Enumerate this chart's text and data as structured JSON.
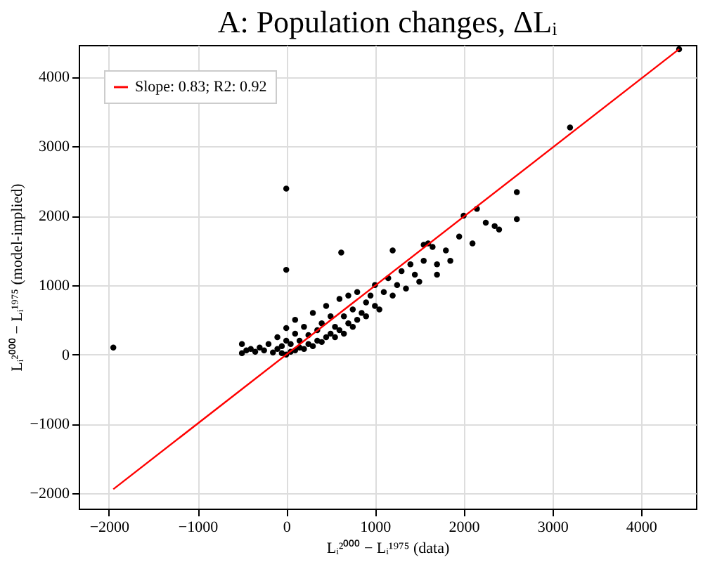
{
  "chart_data": {
    "type": "scatter",
    "title": "A: Population changes, ΔLᵢ",
    "xlabel": "Lᵢ²⁰⁰⁰ − Lᵢ¹⁹⁷⁵ (data)",
    "ylabel": "Lᵢ²⁰⁰⁰ − Lᵢ¹⁹⁷⁵ (model-implied)",
    "xlim": [
      -2340,
      4620
    ],
    "ylim": [
      -2220,
      4460
    ],
    "xticks": [
      -2000,
      -1000,
      0,
      1000,
      2000,
      3000,
      4000
    ],
    "yticks": [
      -2000,
      -1000,
      0,
      1000,
      2000,
      3000,
      4000
    ],
    "grid": true,
    "legend": "top left",
    "series": [
      {
        "marker": "circle",
        "color": "#000000",
        "x": [
          -500,
          -500,
          -450,
          -400,
          -350,
          -300,
          -250,
          -200,
          -150,
          -100,
          -100,
          -50,
          -50,
          0,
          0,
          0,
          50,
          50,
          100,
          100,
          100,
          150,
          150,
          200,
          200,
          250,
          250,
          300,
          300,
          350,
          350,
          400,
          400,
          450,
          450,
          500,
          500,
          550,
          550,
          600,
          600,
          650,
          650,
          700,
          700,
          750,
          750,
          800,
          800,
          850,
          900,
          900,
          950,
          1000,
          1000,
          1050,
          1100,
          1150,
          1200,
          1250,
          1300,
          1350,
          1400,
          1450,
          1500,
          1550,
          1600,
          1650,
          1700,
          1700,
          1800,
          1850,
          1950,
          2000,
          2100,
          2150,
          2250,
          2350,
          2400,
          2600,
          2600,
          3200,
          4430,
          -1950,
          0,
          0,
          620,
          1200,
          1550
        ],
        "values": [
          20,
          150,
          60,
          80,
          40,
          100,
          60,
          150,
          30,
          80,
          250,
          120,
          20,
          0,
          200,
          380,
          40,
          150,
          60,
          300,
          500,
          100,
          200,
          80,
          400,
          150,
          280,
          120,
          600,
          200,
          350,
          180,
          450,
          250,
          700,
          300,
          550,
          250,
          400,
          350,
          800,
          300,
          550,
          450,
          850,
          400,
          650,
          500,
          900,
          600,
          550,
          750,
          850,
          700,
          1000,
          650,
          900,
          1100,
          850,
          1000,
          1200,
          950,
          1300,
          1150,
          1050,
          1350,
          1600,
          1550,
          1300,
          1150,
          1500,
          1350,
          1700,
          2000,
          1600,
          2100,
          1900,
          1850,
          1800,
          2340,
          1950,
          3270,
          4400,
          100,
          2390,
          1220,
          1470,
          1500,
          1580
        ]
      },
      {
        "type": "line",
        "name": "Slope: 0.83; R2: 0.92",
        "color": "#ff0000",
        "line_style": "solid",
        "marker": "none",
        "x": [
          -1950,
          4430
        ],
        "values": [
          -1940,
          4400
        ]
      }
    ]
  }
}
